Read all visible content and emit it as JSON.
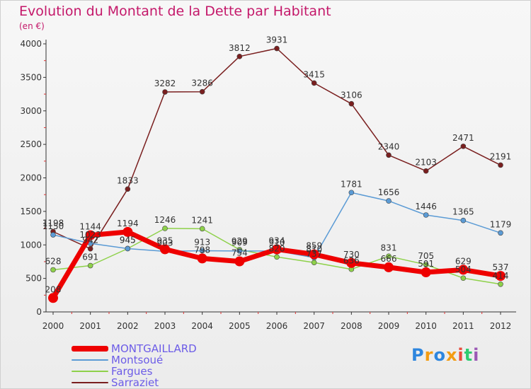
{
  "header": {
    "title": "Evolution du Montant de la Dette par Habitant",
    "unit": "(en €)"
  },
  "logo": {
    "text": "Proxiti"
  },
  "chart_data": {
    "type": "line",
    "title": "Evolution du Montant de la Dette par Habitant",
    "subtitle": "(en €)",
    "xlabel": "",
    "ylabel": "",
    "x": [
      "2000",
      "2001",
      "2002",
      "2003",
      "2004",
      "2005",
      "2006",
      "2007",
      "2008",
      "2009",
      "2010",
      "2011",
      "2012"
    ],
    "yticks": [
      0,
      500,
      1000,
      1500,
      2000,
      2500,
      3000,
      3500,
      4000
    ],
    "ylim": [
      0,
      4000
    ],
    "grid": false,
    "legend_position": "bottom-left",
    "series": [
      {
        "name": "MONTGAILLARD",
        "color": "#ee0000",
        "width": 7,
        "marker": 7,
        "values": [
          208,
          1144,
          1194,
          935,
          798,
          754,
          934,
          859,
          730,
          666,
          591,
          629,
          537
        ],
        "labels": [
          "208",
          "1144",
          "1194",
          "935",
          "798",
          "754",
          "934",
          "859",
          "730",
          "666",
          "591",
          "629",
          "537"
        ]
      },
      {
        "name": "Montsoué",
        "color": "#5b9bd5",
        "width": 1.5,
        "marker": 3.5,
        "values": [
          1150,
          1023,
          945,
          903,
          913,
          909,
          910,
          810,
          1781,
          1656,
          1446,
          1365,
          1179
        ],
        "labels": [
          "1150",
          "1023",
          "945",
          "903",
          "913",
          "909",
          "910",
          "810",
          "1781",
          "1656",
          "1446",
          "1365",
          "1179"
        ]
      },
      {
        "name": "Fargues",
        "color": "#8ed14a",
        "width": 1.5,
        "marker": 3.5,
        "values": [
          628,
          691,
          945,
          1246,
          1241,
          929,
          820,
          737,
          636,
          831,
          705,
          504,
          414
        ],
        "labels": [
          "628",
          "691",
          "945",
          "1246",
          "1241",
          "929",
          "820",
          "737",
          "636",
          "831",
          "705",
          "504",
          "414"
        ]
      },
      {
        "name": "Sarraziet",
        "color": "#7a1f1f",
        "width": 1.5,
        "marker": 3.5,
        "values": [
          1198,
          942,
          1833,
          3282,
          3286,
          3812,
          3931,
          3415,
          3106,
          2340,
          2103,
          2471,
          2191
        ],
        "labels": [
          "1198",
          "942",
          "1833",
          "3282",
          "3286",
          "3812",
          "3931",
          "3415",
          "3106",
          "2340",
          "2103",
          "2471",
          "2191"
        ]
      }
    ]
  }
}
